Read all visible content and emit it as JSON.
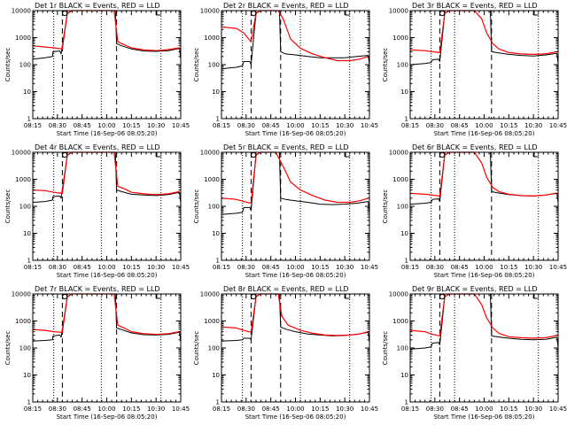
{
  "figure": {
    "colors": {
      "events": "#000000",
      "lld": "#ff0000",
      "axes": "#000000",
      "background": "#ffffff"
    },
    "axis_common": {
      "xlabel": "Start Time (16-Sep-06 08:05:20)",
      "ylabel": "Counts/sec",
      "xticks": [
        "08:15",
        "08:30",
        "08:45",
        "10:00",
        "10:15",
        "10:30",
        "10:45"
      ],
      "yticks": [
        "1",
        "10",
        "100",
        "1000",
        "10000"
      ],
      "yscale": "log"
    }
  },
  "chart_data": [
    {
      "type": "line",
      "title": "Det 1r BLACK = Events, RED = LLD",
      "xlabel": "Start Time (16-Sep-06 08:05:20)",
      "ylabel": "Counts/sec",
      "xlim": [
        0,
        6
      ],
      "ylim": [
        1,
        10000
      ],
      "yscale": "log",
      "grid": false,
      "dotted_lines_x": [
        0.85,
        2.78,
        5.2
      ],
      "dashed_lines_x": [
        1.2,
        3.4
      ],
      "series": [
        {
          "name": "Events",
          "color": "#000000",
          "x": [
            0,
            0.5,
            0.8,
            0.82,
            1.1,
            1.15,
            1.4,
            1.6,
            3.35,
            3.4,
            3.6,
            4,
            4.5,
            5,
            5.5,
            5.95,
            6
          ],
          "y": [
            160,
            180,
            200,
            300,
            320,
            250,
            8000,
            12000,
            12000,
            600,
            500,
            380,
            320,
            310,
            330,
            400,
            150
          ]
        },
        {
          "name": "LLD",
          "color": "#ff0000",
          "x": [
            0,
            0.5,
            0.85,
            1.2,
            1.4,
            1.6,
            3.3,
            3.45,
            3.7,
            4,
            4.5,
            5,
            5.5,
            5.95
          ],
          "y": [
            500,
            450,
            420,
            380,
            8000,
            12000,
            12000,
            700,
            550,
            420,
            350,
            330,
            360,
            420
          ]
        }
      ]
    },
    {
      "type": "line",
      "title": "Det 2r BLACK = Events, RED = LLD",
      "xlabel": "Start Time (16-Sep-06 08:05:20)",
      "ylabel": "Counts/sec",
      "xlim": [
        0,
        6
      ],
      "ylim": [
        1,
        10000
      ],
      "yscale": "log",
      "grid": false,
      "dotted_lines_x": [
        0.85,
        3.2,
        5.2
      ],
      "dashed_lines_x": [
        1.2,
        2.4
      ],
      "series": [
        {
          "name": "Events",
          "color": "#000000",
          "x": [
            0,
            0.6,
            0.85,
            0.9,
            1.15,
            1.2,
            1.4,
            1.6,
            2.35,
            2.4,
            2.6,
            3,
            3.5,
            4,
            4.5,
            5,
            5.5,
            5.95,
            6
          ],
          "y": [
            70,
            80,
            90,
            130,
            130,
            100,
            8000,
            12000,
            12000,
            300,
            250,
            230,
            200,
            180,
            180,
            180,
            200,
            220,
            100
          ]
        },
        {
          "name": "LLD",
          "color": "#ff0000",
          "x": [
            0,
            0.6,
            0.9,
            1.2,
            1.4,
            1.6,
            2.3,
            2.5,
            2.8,
            3.2,
            3.7,
            4.2,
            4.7,
            5.2,
            5.6,
            5.95
          ],
          "y": [
            2500,
            2200,
            1500,
            700,
            8000,
            12000,
            12000,
            5000,
            900,
            400,
            250,
            180,
            140,
            140,
            160,
            200
          ]
        }
      ]
    },
    {
      "type": "line",
      "title": "Det 3r BLACK = Events, RED = LLD",
      "xlabel": "Start Time (16-Sep-06 08:05:20)",
      "ylabel": "Counts/sec",
      "xlim": [
        0,
        6
      ],
      "ylim": [
        1,
        10000
      ],
      "yscale": "log",
      "grid": false,
      "dotted_lines_x": [
        0.85,
        1.8,
        5.2
      ],
      "dashed_lines_x": [
        1.2,
        3.3
      ],
      "series": [
        {
          "name": "Events",
          "color": "#000000",
          "x": [
            0,
            0.6,
            0.85,
            0.9,
            1.15,
            1.2,
            1.4,
            1.6,
            3.25,
            3.3,
            3.5,
            4,
            4.5,
            5,
            5.5,
            5.95,
            6
          ],
          "y": [
            100,
            110,
            120,
            150,
            160,
            130,
            8000,
            12000,
            12000,
            300,
            280,
            240,
            220,
            210,
            230,
            260,
            110
          ]
        },
        {
          "name": "LLD",
          "color": "#ff0000",
          "x": [
            0,
            0.6,
            0.9,
            1.2,
            1.4,
            1.6,
            2.6,
            2.9,
            3.1,
            3.35,
            3.6,
            4,
            4.5,
            5,
            5.5,
            5.95
          ],
          "y": [
            350,
            330,
            300,
            280,
            8000,
            12000,
            12000,
            5000,
            1500,
            600,
            380,
            280,
            250,
            240,
            250,
            300
          ]
        }
      ]
    },
    {
      "type": "line",
      "title": "Det 4r BLACK = Events, RED = LLD",
      "xlabel": "Start Time (16-Sep-06 08:05:20)",
      "ylabel": "Counts/sec",
      "xlim": [
        0,
        6
      ],
      "ylim": [
        1,
        10000
      ],
      "yscale": "log",
      "grid": false,
      "dotted_lines_x": [
        0.85,
        2.78,
        5.2
      ],
      "dashed_lines_x": [
        1.2,
        3.4
      ],
      "series": [
        {
          "name": "Events",
          "color": "#000000",
          "x": [
            0,
            0.5,
            0.8,
            0.82,
            1.1,
            1.15,
            1.4,
            1.6,
            3.35,
            3.4,
            3.6,
            4,
            4.5,
            5,
            5.5,
            5.95,
            6
          ],
          "y": [
            140,
            150,
            170,
            230,
            240,
            200,
            8000,
            12000,
            12000,
            400,
            350,
            280,
            260,
            250,
            270,
            330,
            130
          ]
        },
        {
          "name": "LLD",
          "color": "#ff0000",
          "x": [
            0,
            0.5,
            0.85,
            1.2,
            1.4,
            1.6,
            3.3,
            3.45,
            3.7,
            4,
            4.5,
            5,
            5.5,
            5.95
          ],
          "y": [
            400,
            380,
            330,
            300,
            8000,
            12000,
            12000,
            550,
            450,
            330,
            290,
            270,
            290,
            350
          ]
        }
      ]
    },
    {
      "type": "line",
      "title": "Det 5r BLACK = Events, RED = LLD",
      "xlabel": "Start Time (16-Sep-06 08:05:20)",
      "ylabel": "Counts/sec",
      "xlim": [
        0,
        6
      ],
      "ylim": [
        1,
        10000
      ],
      "yscale": "log",
      "grid": false,
      "dotted_lines_x": [
        0.85,
        3.2,
        5.2
      ],
      "dashed_lines_x": [
        1.2,
        2.4
      ],
      "series": [
        {
          "name": "Events",
          "color": "#000000",
          "x": [
            0,
            0.6,
            0.85,
            0.9,
            1.15,
            1.2,
            1.4,
            1.6,
            2.35,
            2.4,
            2.6,
            3,
            3.5,
            4,
            4.5,
            5,
            5.5,
            5.95,
            6
          ],
          "y": [
            50,
            55,
            60,
            90,
            90,
            70,
            8000,
            12000,
            12000,
            200,
            180,
            160,
            140,
            120,
            115,
            120,
            130,
            150,
            60
          ]
        },
        {
          "name": "LLD",
          "color": "#ff0000",
          "x": [
            0,
            0.6,
            0.9,
            1.2,
            1.4,
            1.6,
            2.2,
            2.5,
            2.8,
            3.2,
            3.7,
            4.2,
            4.7,
            5.2,
            5.6,
            5.95
          ],
          "y": [
            200,
            180,
            150,
            130,
            8000,
            12000,
            12000,
            3000,
            800,
            400,
            250,
            170,
            140,
            140,
            160,
            200
          ]
        }
      ]
    },
    {
      "type": "line",
      "title": "Det 6r BLACK = Events, RED = LLD",
      "xlabel": "Start Time (16-Sep-06 08:05:20)",
      "ylabel": "Counts/sec",
      "xlim": [
        0,
        6
      ],
      "ylim": [
        1,
        10000
      ],
      "yscale": "log",
      "grid": false,
      "dotted_lines_x": [
        0.85,
        1.8,
        5.2
      ],
      "dashed_lines_x": [
        1.2,
        3.3
      ],
      "series": [
        {
          "name": "Events",
          "color": "#000000",
          "x": [
            0,
            0.6,
            0.85,
            0.9,
            1.15,
            1.2,
            1.4,
            1.6,
            3.25,
            3.3,
            3.5,
            4,
            4.5,
            5,
            5.5,
            5.95,
            6
          ],
          "y": [
            120,
            130,
            140,
            180,
            190,
            150,
            8000,
            12000,
            12000,
            350,
            320,
            270,
            250,
            240,
            260,
            300,
            130
          ]
        },
        {
          "name": "LLD",
          "color": "#ff0000",
          "x": [
            0,
            0.6,
            0.9,
            1.2,
            1.4,
            1.6,
            2.6,
            2.9,
            3.1,
            3.35,
            3.6,
            4,
            4.5,
            5,
            5.5,
            5.95
          ],
          "y": [
            300,
            280,
            260,
            240,
            8000,
            12000,
            12000,
            4000,
            1200,
            500,
            350,
            280,
            250,
            240,
            260,
            310
          ]
        }
      ]
    },
    {
      "type": "line",
      "title": "Det 7r BLACK = Events, RED = LLD",
      "xlabel": "Start Time (16-Sep-06 08:05:20)",
      "ylabel": "Counts/sec",
      "xlim": [
        0,
        6
      ],
      "ylim": [
        1,
        10000
      ],
      "yscale": "log",
      "grid": false,
      "dotted_lines_x": [
        0.85,
        2.78,
        5.2
      ],
      "dashed_lines_x": [
        1.2,
        3.4
      ],
      "series": [
        {
          "name": "Events",
          "color": "#000000",
          "x": [
            0,
            0.5,
            0.8,
            0.82,
            1.1,
            1.15,
            1.4,
            1.6,
            3.35,
            3.4,
            3.6,
            4,
            4.5,
            5,
            5.5,
            5.95,
            6
          ],
          "y": [
            180,
            190,
            200,
            280,
            300,
            250,
            8000,
            12000,
            12000,
            550,
            480,
            360,
            310,
            300,
            320,
            380,
            160
          ]
        },
        {
          "name": "LLD",
          "color": "#ff0000",
          "x": [
            0,
            0.5,
            0.85,
            1.2,
            1.4,
            1.6,
            3.3,
            3.45,
            3.7,
            4,
            4.5,
            5,
            5.5,
            5.95
          ],
          "y": [
            480,
            450,
            400,
            380,
            8000,
            12000,
            12000,
            700,
            550,
            400,
            340,
            320,
            340,
            400
          ]
        }
      ]
    },
    {
      "type": "line",
      "title": "Det 8r BLACK = Events, RED = LLD",
      "xlabel": "Start Time (16-Sep-06 08:05:20)",
      "ylabel": "Counts/sec",
      "xlim": [
        0,
        6
      ],
      "ylim": [
        1,
        10000
      ],
      "yscale": "log",
      "grid": false,
      "dotted_lines_x": [
        0.85,
        3.2,
        5.2
      ],
      "dashed_lines_x": [
        1.2,
        2.4
      ],
      "series": [
        {
          "name": "Events",
          "color": "#000000",
          "x": [
            0,
            0.6,
            0.85,
            0.9,
            1.15,
            1.2,
            1.4,
            1.6,
            2.35,
            2.4,
            2.6,
            3,
            3.5,
            4,
            4.5,
            5,
            5.5,
            5.95,
            6
          ],
          "y": [
            180,
            190,
            200,
            230,
            230,
            200,
            8000,
            12000,
            12000,
            600,
            500,
            400,
            330,
            300,
            280,
            290,
            320,
            380,
            160
          ]
        },
        {
          "name": "LLD",
          "color": "#ff0000",
          "x": [
            0,
            0.6,
            0.9,
            1.2,
            1.4,
            1.6,
            2.3,
            2.45,
            2.7,
            3.2,
            3.7,
            4.2,
            4.7,
            5.2,
            5.6,
            5.95
          ],
          "y": [
            600,
            550,
            450,
            380,
            8000,
            12000,
            12000,
            1500,
            700,
            450,
            350,
            300,
            290,
            300,
            330,
            400
          ]
        }
      ]
    },
    {
      "type": "line",
      "title": "Det 9r BLACK = Events, RED = LLD",
      "xlabel": "Start Time (16-Sep-06 08:05:20)",
      "ylabel": "Counts/sec",
      "xlim": [
        0,
        6
      ],
      "ylim": [
        1,
        10000
      ],
      "yscale": "log",
      "grid": false,
      "dotted_lines_x": [
        0.85,
        1.8,
        5.2
      ],
      "dashed_lines_x": [
        1.2,
        3.3
      ],
      "series": [
        {
          "name": "Events",
          "color": "#000000",
          "x": [
            0,
            0.6,
            0.85,
            0.9,
            1.15,
            1.2,
            1.4,
            1.6,
            3.25,
            3.3,
            3.5,
            4,
            4.5,
            5,
            5.5,
            5.95,
            6
          ],
          "y": [
            90,
            100,
            110,
            150,
            160,
            130,
            8000,
            12000,
            12000,
            280,
            260,
            230,
            210,
            200,
            210,
            250,
            100
          ]
        },
        {
          "name": "LLD",
          "color": "#ff0000",
          "x": [
            0,
            0.6,
            0.9,
            1.2,
            1.4,
            1.6,
            2.6,
            2.9,
            3.1,
            3.35,
            3.6,
            4,
            4.5,
            5,
            5.5,
            5.95
          ],
          "y": [
            450,
            400,
            320,
            280,
            8000,
            12000,
            12000,
            4000,
            1300,
            550,
            350,
            260,
            240,
            230,
            240,
            290
          ]
        }
      ]
    }
  ]
}
